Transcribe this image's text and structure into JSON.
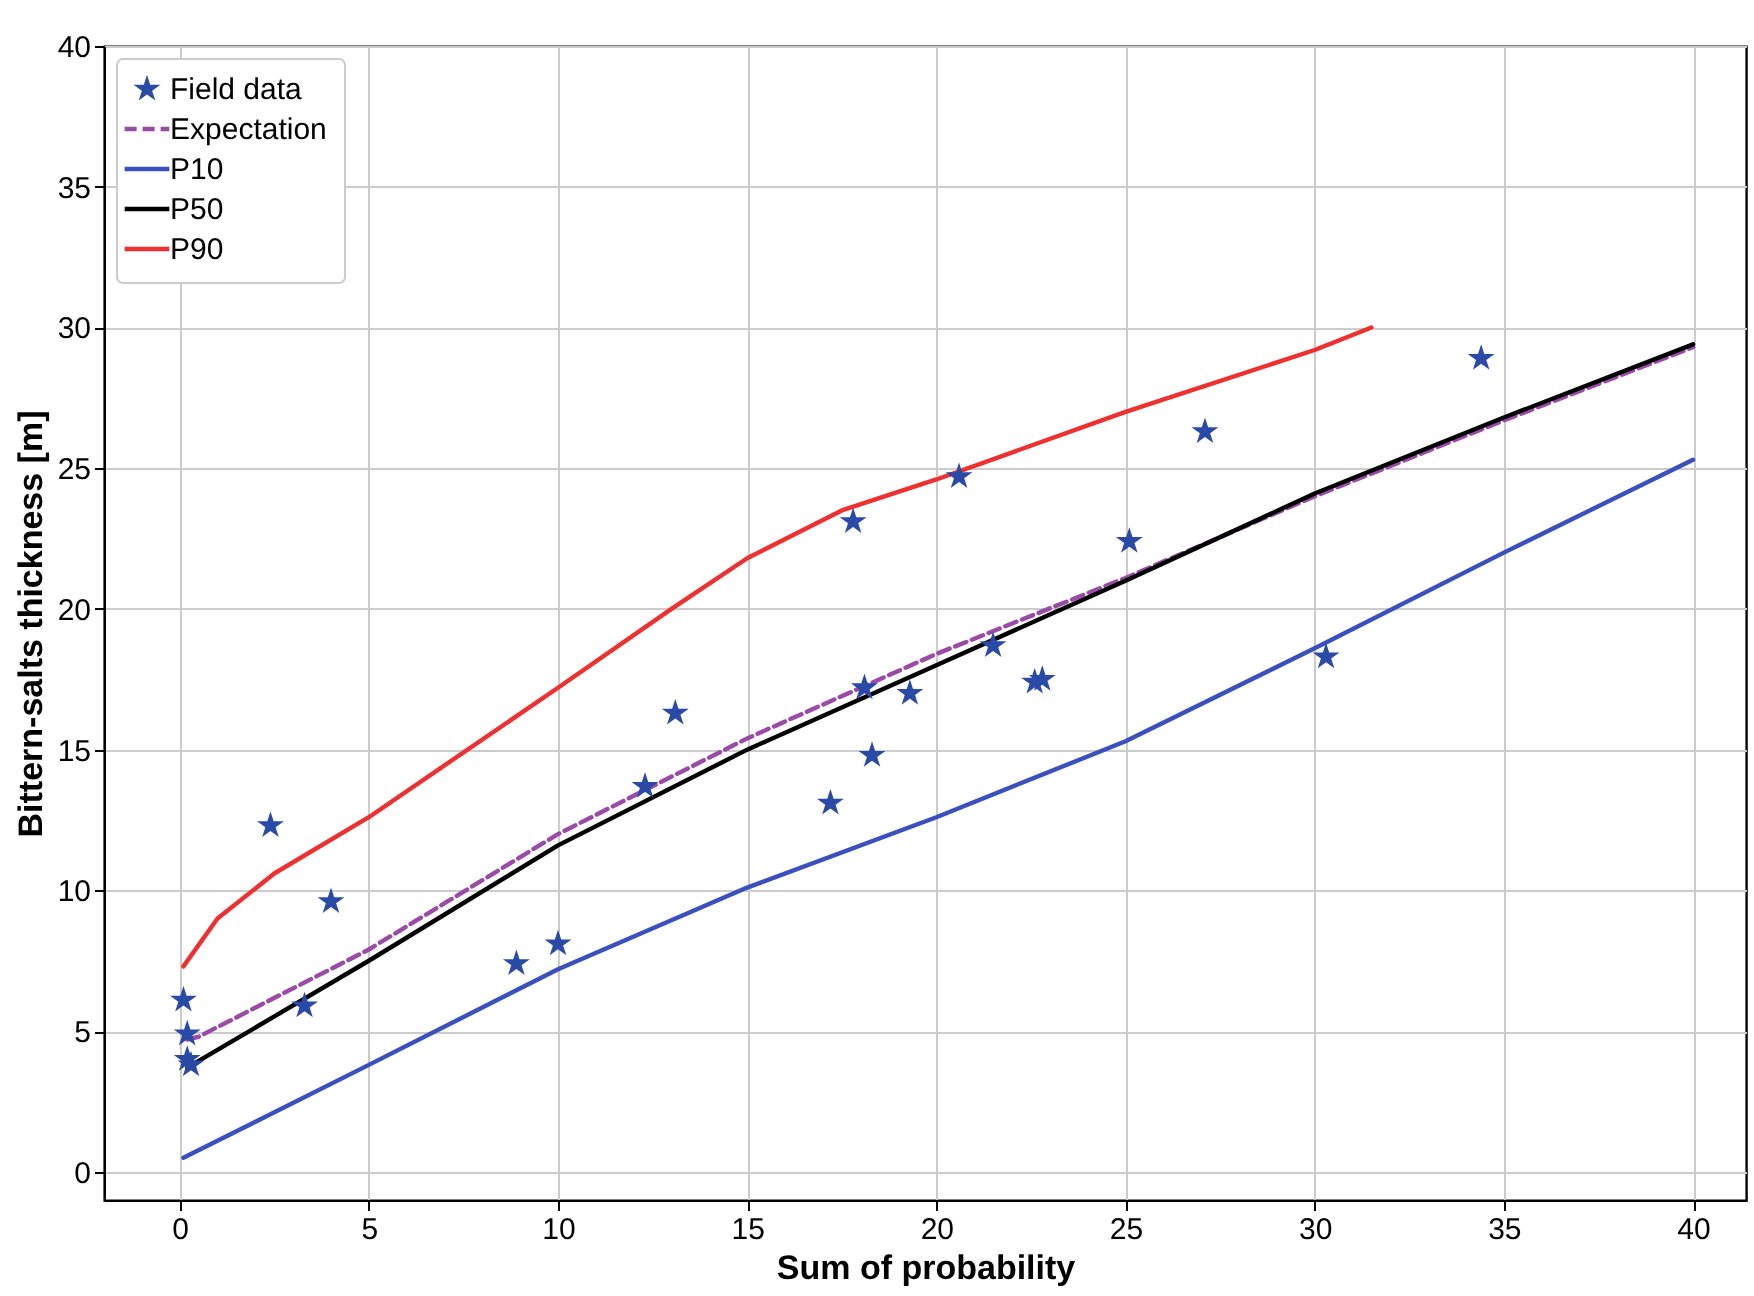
{
  "chart_data": {
    "type": "line",
    "xlabel": "Sum of probability",
    "ylabel": "Bittern-salts thickness [m]",
    "xlim": [
      -2,
      41.4
    ],
    "ylim": [
      -1,
      40
    ],
    "xticks": [
      0,
      5,
      10,
      15,
      20,
      25,
      30,
      35,
      40
    ],
    "yticks": [
      0,
      5,
      10,
      15,
      20,
      25,
      30,
      35,
      40
    ],
    "grid": true,
    "legend": "top left",
    "series": [
      {
        "name": "Field data",
        "type": "scatter",
        "marker": "star",
        "color": "#2a4aa8",
        "x": [
          0.1,
          0.2,
          0.2,
          0.3,
          2.4,
          3.3,
          4.0,
          8.9,
          10.0,
          12.3,
          13.1,
          17.2,
          17.8,
          18.1,
          18.3,
          19.3,
          20.6,
          21.5,
          22.6,
          22.8,
          25.1,
          27.1,
          30.3,
          34.4
        ],
        "values": [
          6.1,
          4.9,
          4.0,
          3.8,
          12.3,
          5.9,
          9.6,
          7.4,
          8.1,
          13.7,
          16.3,
          13.1,
          23.1,
          17.2,
          14.8,
          17.0,
          24.7,
          18.7,
          17.4,
          17.5,
          22.4,
          26.3,
          18.3,
          28.9
        ]
      },
      {
        "name": "Expectation",
        "marker": "none",
        "line_style": "dashed",
        "color": "#9b4aa8",
        "x": [
          0.2,
          0.5,
          5,
          10,
          15,
          20,
          25,
          30,
          35,
          40
        ],
        "values": [
          4.7,
          4.8,
          7.9,
          12.0,
          15.4,
          18.4,
          21.1,
          24.0,
          26.7,
          29.3
        ]
      },
      {
        "name": "P10",
        "marker": "none",
        "line_style": "solid",
        "color": "#3a50c0",
        "x": [
          0.1,
          5,
          10,
          15,
          20,
          25,
          30,
          35,
          40
        ],
        "values": [
          0.5,
          3.8,
          7.2,
          10.1,
          12.6,
          15.3,
          18.6,
          22.0,
          25.3
        ]
      },
      {
        "name": "P50",
        "marker": "none",
        "line_style": "solid",
        "color": "#000000",
        "x": [
          0.2,
          5,
          10,
          15,
          20,
          25,
          30,
          35,
          40
        ],
        "values": [
          3.7,
          7.5,
          11.6,
          15.0,
          18.0,
          21.0,
          24.1,
          26.8,
          29.4
        ]
      },
      {
        "name": "P90",
        "marker": "none",
        "line_style": "solid",
        "color": "#ee3030",
        "x": [
          0.1,
          1,
          2.5,
          5,
          10,
          13,
          15,
          17.5,
          20,
          25,
          30,
          31.5
        ],
        "values": [
          7.3,
          9.0,
          10.6,
          12.6,
          17.2,
          20.0,
          21.8,
          23.5,
          24.6,
          27.0,
          29.2,
          30.0
        ]
      }
    ]
  }
}
